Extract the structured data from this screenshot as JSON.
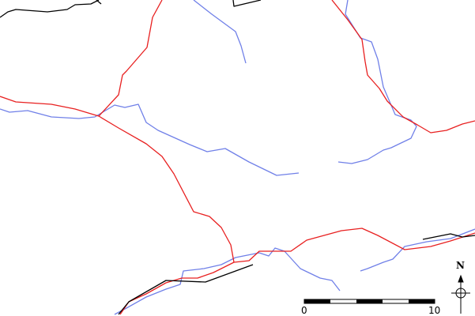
{
  "colors": {
    "river": "#7080e8",
    "road": "#e82020",
    "boundary": "#000000",
    "background": "#ffffff"
  },
  "scale_bar": {
    "start_label": "0",
    "end_label": "10"
  },
  "compass": {
    "north_label": "N",
    "icon": "north-arrow-icon"
  }
}
